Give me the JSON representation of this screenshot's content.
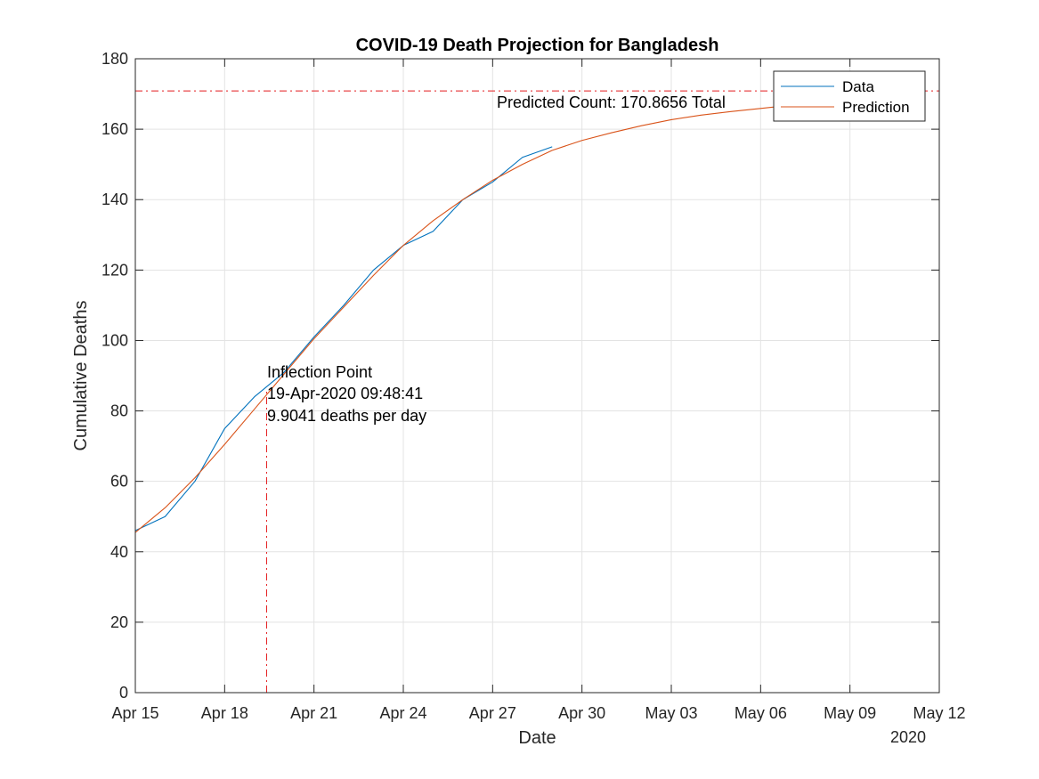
{
  "chart_data": {
    "type": "line",
    "title": "COVID-19 Death Projection for Bangladesh",
    "xlabel": "Date",
    "ylabel": "Cumulative Deaths",
    "x_year_label": "2020",
    "xlim": [
      "2020-04-15",
      "2020-05-12"
    ],
    "ylim": [
      0,
      180
    ],
    "x_ticks": [
      {
        "date": "2020-04-15",
        "label": "Apr 15"
      },
      {
        "date": "2020-04-18",
        "label": "Apr 18"
      },
      {
        "date": "2020-04-21",
        "label": "Apr 21"
      },
      {
        "date": "2020-04-24",
        "label": "Apr 24"
      },
      {
        "date": "2020-04-27",
        "label": "Apr 27"
      },
      {
        "date": "2020-04-30",
        "label": "Apr 30"
      },
      {
        "date": "2020-05-03",
        "label": "May 03"
      },
      {
        "date": "2020-05-06",
        "label": "May 06"
      },
      {
        "date": "2020-05-09",
        "label": "May 09"
      },
      {
        "date": "2020-05-12",
        "label": "May 12"
      }
    ],
    "y_ticks": [
      0,
      20,
      40,
      60,
      80,
      100,
      120,
      140,
      160,
      180
    ],
    "grid": true,
    "legend_position": "top-right",
    "series": [
      {
        "name": "Data",
        "color": "#0072BD",
        "points": [
          [
            "2020-04-15",
            46
          ],
          [
            "2020-04-16",
            50
          ],
          [
            "2020-04-17",
            60
          ],
          [
            "2020-04-18",
            75
          ],
          [
            "2020-04-19",
            84
          ],
          [
            "2020-04-20",
            91
          ],
          [
            "2020-04-21",
            101
          ],
          [
            "2020-04-22",
            110
          ],
          [
            "2020-04-23",
            120
          ],
          [
            "2020-04-24",
            127
          ],
          [
            "2020-04-25",
            131
          ],
          [
            "2020-04-26",
            140
          ],
          [
            "2020-04-27",
            145
          ],
          [
            "2020-04-28",
            152
          ],
          [
            "2020-04-29",
            155
          ]
        ]
      },
      {
        "name": "Prediction",
        "color": "#D95319",
        "points": [
          [
            "2020-04-15",
            45.5
          ],
          [
            "2020-04-16",
            52.5
          ],
          [
            "2020-04-17",
            61
          ],
          [
            "2020-04-18",
            70.5
          ],
          [
            "2020-04-19",
            80.5
          ],
          [
            "2020-04-20",
            90.5
          ],
          [
            "2020-04-21",
            100.5
          ],
          [
            "2020-04-22",
            109.5
          ],
          [
            "2020-04-23",
            118.5
          ],
          [
            "2020-04-24",
            127
          ],
          [
            "2020-04-25",
            134
          ],
          [
            "2020-04-26",
            140
          ],
          [
            "2020-04-27",
            145.5
          ],
          [
            "2020-04-28",
            150
          ],
          [
            "2020-04-29",
            154
          ],
          [
            "2020-04-30",
            156.8
          ],
          [
            "2020-05-01",
            159
          ],
          [
            "2020-05-02",
            161
          ],
          [
            "2020-05-03",
            162.7
          ],
          [
            "2020-05-04",
            164
          ],
          [
            "2020-05-05",
            165
          ],
          [
            "2020-05-06",
            165.9
          ],
          [
            "2020-05-07",
            166.8
          ],
          [
            "2020-05-08",
            167.5
          ]
        ]
      }
    ],
    "reference_lines": {
      "predicted_total_y": 170.8656,
      "inflection_date": "2020-04-19T09:48:41",
      "color": "#E41A1C"
    },
    "annotations": {
      "predicted_count": "Predicted Count: 170.8656 Total",
      "inflection": [
        "Inflection Point",
        "19-Apr-2020 09:48:41",
        "9.9041 deaths per day"
      ]
    }
  }
}
